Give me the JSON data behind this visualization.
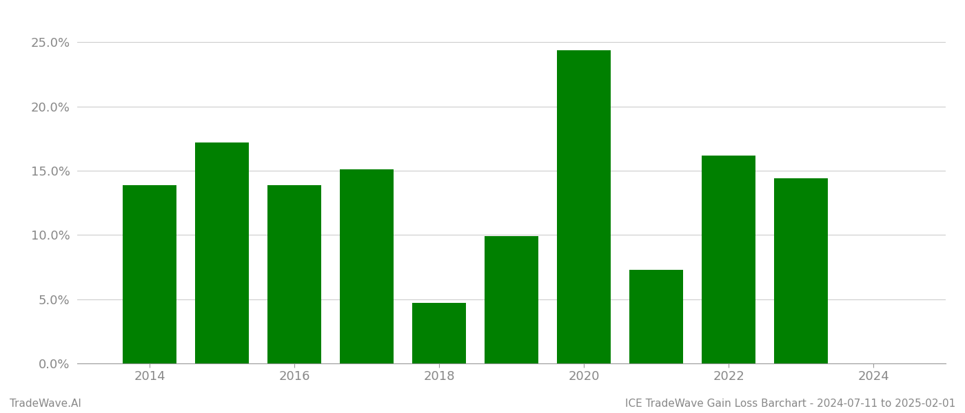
{
  "years": [
    2014,
    2015,
    2016,
    2017,
    2018,
    2019,
    2020,
    2021,
    2022,
    2023
  ],
  "values": [
    0.139,
    0.172,
    0.139,
    0.151,
    0.047,
    0.099,
    0.244,
    0.073,
    0.162,
    0.144
  ],
  "bar_color": "#008000",
  "background_color": "#ffffff",
  "grid_color": "#cccccc",
  "tick_label_color": "#888888",
  "ylim": [
    0,
    0.27
  ],
  "yticks": [
    0.0,
    0.05,
    0.1,
    0.15,
    0.2,
    0.25
  ],
  "xticks": [
    2014,
    2016,
    2018,
    2020,
    2022,
    2024
  ],
  "xlim": [
    2013.0,
    2025.0
  ],
  "bar_width": 0.75,
  "footer_left": "TradeWave.AI",
  "footer_right": "ICE TradeWave Gain Loss Barchart - 2024-07-11 to 2025-02-01",
  "footer_color": "#888888",
  "footer_fontsize": 11,
  "tick_fontsize": 13
}
